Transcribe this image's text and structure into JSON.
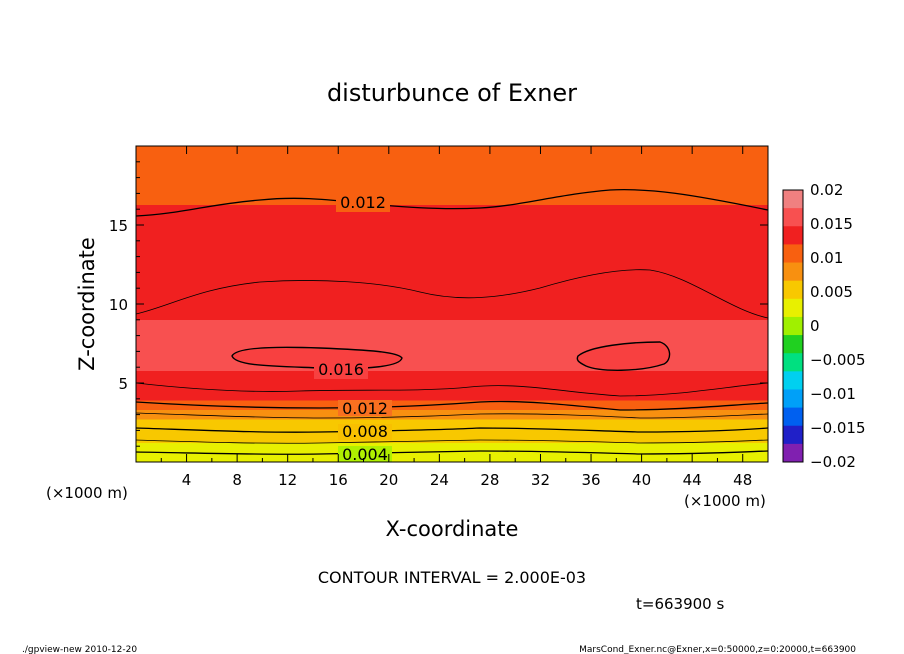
{
  "chart_data": {
    "type": "heatmap",
    "title": "disturbunce of Exner",
    "xlabel": "X-coordinate",
    "ylabel": "Z-coordinate",
    "x_unit": "(×1000 m)",
    "y_unit": "(×1000 m)",
    "xlim": [
      0,
      50
    ],
    "ylim": [
      0,
      20
    ],
    "x_ticks": [
      "4",
      "8",
      "12",
      "16",
      "20",
      "24",
      "28",
      "32",
      "36",
      "40",
      "44",
      "48"
    ],
    "y_ticks": [
      "5",
      "10",
      "15"
    ],
    "contour_labels": [
      "0.012",
      "0.016",
      "0.012",
      "0.008",
      "0.004"
    ],
    "contour_interval_text": "CONTOUR INTERVAL = 2.000E-03",
    "time_text": "t=663900 s",
    "colorbar": {
      "ticks": [
        "0.02",
        "0.015",
        "0.01",
        "0.005",
        "0",
        "−0.005",
        "−0.01",
        "−0.015",
        "−0.02"
      ],
      "colors": [
        "#f08080",
        "#f85050",
        "#f02020",
        "#f86010",
        "#f89010",
        "#f8c800",
        "#e8f000",
        "#a0f000",
        "#20d020",
        "#00e080",
        "#00d0f0",
        "#00a0f8",
        "#0060f0",
        "#2020c8",
        "#8020b0"
      ]
    },
    "profile": [
      {
        "z": 0.0,
        "v": 0.0025
      },
      {
        "z": 0.8,
        "v": 0.0035
      },
      {
        "z": 1.6,
        "v": 0.005
      },
      {
        "z": 2.4,
        "v": 0.0065
      },
      {
        "z": 3.0,
        "v": 0.0085
      },
      {
        "z": 3.6,
        "v": 0.0105
      },
      {
        "z": 4.2,
        "v": 0.0125
      },
      {
        "z": 5.0,
        "v": 0.014
      },
      {
        "z": 6.5,
        "v": 0.0158
      },
      {
        "z": 8.0,
        "v": 0.0152
      },
      {
        "z": 10.0,
        "v": 0.014
      },
      {
        "z": 12.0,
        "v": 0.0132
      },
      {
        "z": 15.0,
        "v": 0.0124
      },
      {
        "z": 17.5,
        "v": 0.0112
      },
      {
        "z": 20.0,
        "v": 0.01
      }
    ]
  },
  "footer": {
    "left": "./gpview-new   2010-12-20",
    "right": "MarsCond_Exner.nc@Exner,x=0:50000,z=0:20000,t=663900"
  }
}
